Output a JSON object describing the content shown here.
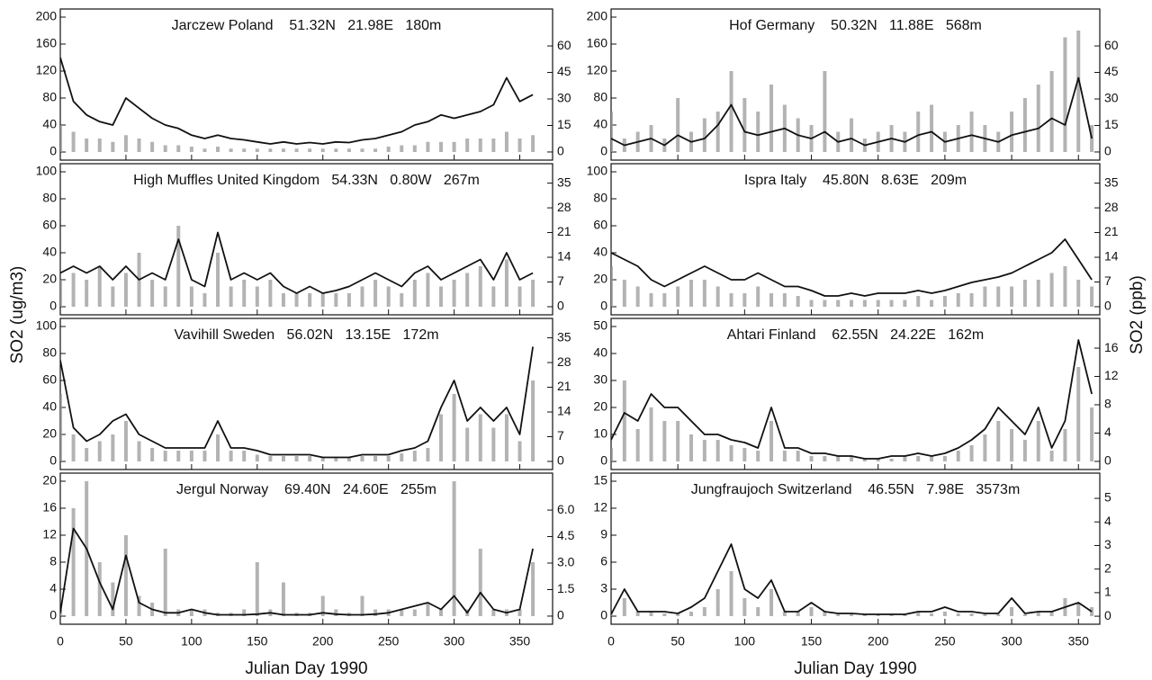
{
  "ylabel": "SO2 (ug/m3)",
  "y2label": "SO2 (ppb)",
  "chart_data": [
    {
      "type": "line",
      "title": "Jarczew Poland    51.32N   21.98E   180m",
      "x": [
        0,
        10,
        20,
        30,
        40,
        50,
        60,
        70,
        80,
        90,
        100,
        110,
        120,
        130,
        140,
        150,
        160,
        170,
        180,
        190,
        200,
        210,
        220,
        230,
        240,
        250,
        260,
        270,
        280,
        290,
        300,
        310,
        320,
        330,
        340,
        350,
        360
      ],
      "series": [
        {
          "color": "#999999",
          "values": [
            40,
            30,
            20,
            20,
            15,
            25,
            20,
            15,
            10,
            10,
            8,
            5,
            8,
            5,
            5,
            5,
            5,
            5,
            5,
            5,
            5,
            5,
            5,
            5,
            5,
            8,
            10,
            10,
            15,
            15,
            15,
            20,
            20,
            20,
            30,
            20,
            25
          ]
        },
        {
          "color": "#111111",
          "values": [
            140,
            75,
            55,
            45,
            40,
            80,
            65,
            50,
            40,
            35,
            25,
            20,
            25,
            20,
            18,
            15,
            12,
            15,
            12,
            14,
            12,
            15,
            14,
            18,
            20,
            25,
            30,
            40,
            45,
            55,
            50,
            55,
            60,
            70,
            110,
            75,
            85
          ]
        }
      ],
      "xlim": [
        0,
        375
      ],
      "xticks": [
        0,
        50,
        100,
        150,
        200,
        250,
        300,
        350
      ],
      "ylim": [
        -12,
        212
      ],
      "yticks": [
        0,
        40,
        80,
        120,
        160,
        200
      ],
      "y2lim": [
        -4.6,
        80.9
      ],
      "y2ticks": [
        0,
        15,
        30,
        45,
        60
      ]
    },
    {
      "type": "line",
      "title": "High Muffles United Kingdom   54.33N   0.80W   267m",
      "x": [
        0,
        10,
        20,
        30,
        40,
        50,
        60,
        70,
        80,
        90,
        100,
        110,
        120,
        130,
        140,
        150,
        160,
        170,
        180,
        190,
        200,
        210,
        220,
        230,
        240,
        250,
        260,
        270,
        280,
        290,
        300,
        310,
        320,
        330,
        340,
        350,
        360
      ],
      "series": [
        {
          "color": "#999999",
          "values": [
            20,
            25,
            20,
            30,
            15,
            25,
            40,
            20,
            15,
            60,
            15,
            10,
            40,
            15,
            20,
            15,
            20,
            10,
            10,
            10,
            10,
            10,
            10,
            15,
            20,
            15,
            10,
            20,
            25,
            15,
            20,
            25,
            30,
            15,
            35,
            15,
            20
          ]
        },
        {
          "color": "#111111",
          "values": [
            25,
            30,
            25,
            30,
            20,
            30,
            20,
            25,
            20,
            50,
            20,
            15,
            55,
            20,
            25,
            20,
            25,
            15,
            10,
            15,
            10,
            12,
            15,
            20,
            25,
            20,
            15,
            25,
            30,
            20,
            25,
            30,
            35,
            20,
            40,
            20,
            25
          ]
        }
      ],
      "xlim": [
        0,
        375
      ],
      "xticks": [
        0,
        50,
        100,
        150,
        200,
        250,
        300,
        350
      ],
      "ylim": [
        -6,
        106
      ],
      "yticks": [
        0,
        20,
        40,
        60,
        80,
        100
      ],
      "y2lim": [
        -2.3,
        40.5
      ],
      "y2ticks": [
        0,
        7,
        14,
        21,
        28,
        35
      ]
    },
    {
      "type": "line",
      "title": "Vavihill Sweden   56.02N   13.15E   172m",
      "x": [
        0,
        10,
        20,
        30,
        40,
        50,
        60,
        70,
        80,
        90,
        100,
        110,
        120,
        130,
        140,
        150,
        160,
        170,
        180,
        190,
        200,
        210,
        220,
        230,
        240,
        250,
        260,
        270,
        280,
        290,
        300,
        310,
        320,
        330,
        340,
        350,
        360
      ],
      "series": [
        {
          "color": "#999999",
          "values": [
            50,
            20,
            10,
            15,
            20,
            30,
            15,
            10,
            8,
            8,
            8,
            8,
            20,
            8,
            8,
            5,
            4,
            4,
            4,
            4,
            3,
            3,
            3,
            4,
            4,
            4,
            6,
            8,
            10,
            35,
            50,
            25,
            35,
            25,
            35,
            15,
            60
          ]
        },
        {
          "color": "#111111",
          "values": [
            75,
            25,
            15,
            20,
            30,
            35,
            20,
            15,
            10,
            10,
            10,
            10,
            30,
            10,
            10,
            8,
            5,
            5,
            5,
            5,
            3,
            3,
            3,
            5,
            5,
            5,
            8,
            10,
            15,
            40,
            60,
            30,
            40,
            30,
            40,
            20,
            85
          ]
        }
      ],
      "xlim": [
        0,
        375
      ],
      "xticks": [
        0,
        50,
        100,
        150,
        200,
        250,
        300,
        350
      ],
      "ylim": [
        -6,
        106
      ],
      "yticks": [
        0,
        20,
        40,
        60,
        80,
        100
      ],
      "y2lim": [
        -2.3,
        40.5
      ],
      "y2ticks": [
        0,
        7,
        14,
        21,
        28,
        35
      ]
    },
    {
      "type": "line",
      "title": "Jergul Norway    69.40N   24.60E   255m",
      "xlabel": "Julian Day 1990",
      "x": [
        0,
        10,
        20,
        30,
        40,
        50,
        60,
        70,
        80,
        90,
        100,
        110,
        120,
        130,
        140,
        150,
        160,
        170,
        180,
        190,
        200,
        210,
        220,
        230,
        240,
        250,
        260,
        270,
        280,
        290,
        300,
        310,
        320,
        330,
        340,
        350,
        360
      ],
      "series": [
        {
          "color": "#999999",
          "values": [
            1,
            16,
            20,
            8,
            5,
            12,
            3,
            2,
            10,
            1,
            1,
            1,
            0.5,
            0.5,
            1,
            8,
            1,
            5,
            0.5,
            0.5,
            3,
            1,
            0.5,
            3,
            1,
            1,
            1,
            1,
            2,
            1,
            20,
            1,
            10,
            1,
            1,
            1,
            8
          ]
        },
        {
          "color": "#111111",
          "values": [
            0.5,
            13,
            10,
            5,
            1,
            9,
            2,
            1,
            0.5,
            0.5,
            1,
            0.5,
            0.2,
            0.2,
            0.2,
            0.3,
            0.5,
            0.2,
            0.2,
            0.2,
            0.5,
            0.3,
            0.2,
            0.2,
            0.3,
            0.5,
            1,
            1.5,
            2,
            1,
            3,
            0.5,
            3.5,
            1,
            0.5,
            1,
            10
          ]
        }
      ],
      "xlim": [
        0,
        375
      ],
      "xticks": [
        0,
        50,
        100,
        150,
        200,
        250,
        300,
        350
      ],
      "ylim": [
        -1.2,
        21.2
      ],
      "yticks": [
        0,
        4,
        8,
        12,
        16,
        20
      ],
      "y2lim": [
        -0.46,
        8.09
      ],
      "y2ticks": [
        0,
        1.5,
        {
          "value": 3,
          "label": "3.0"
        },
        4.5,
        {
          "value": 6,
          "label": "6.0"
        }
      ]
    },
    {
      "type": "line",
      "title": "Hof Germany    50.32N   11.88E   568m",
      "x": [
        0,
        10,
        20,
        30,
        40,
        50,
        60,
        70,
        80,
        90,
        100,
        110,
        120,
        130,
        140,
        150,
        160,
        170,
        180,
        190,
        200,
        210,
        220,
        230,
        240,
        250,
        260,
        270,
        280,
        290,
        300,
        310,
        320,
        330,
        340,
        350,
        360
      ],
      "series": [
        {
          "color": "#999999",
          "values": [
            60,
            20,
            30,
            40,
            20,
            80,
            30,
            50,
            60,
            120,
            80,
            60,
            100,
            70,
            50,
            40,
            120,
            30,
            50,
            20,
            30,
            40,
            30,
            60,
            70,
            30,
            40,
            60,
            40,
            30,
            60,
            80,
            100,
            120,
            170,
            180,
            40
          ]
        },
        {
          "color": "#111111",
          "values": [
            20,
            10,
            15,
            20,
            10,
            25,
            15,
            20,
            40,
            70,
            30,
            25,
            30,
            35,
            25,
            20,
            30,
            15,
            20,
            10,
            15,
            20,
            15,
            25,
            30,
            15,
            20,
            25,
            20,
            15,
            25,
            30,
            35,
            50,
            40,
            110,
            20
          ]
        }
      ],
      "xlim": [
        0,
        366
      ],
      "xticks": [
        0,
        50,
        100,
        150,
        200,
        250,
        300,
        350
      ],
      "ylim": [
        -12,
        212
      ],
      "yticks": [
        0,
        40,
        80,
        120,
        160,
        200
      ],
      "y2lim": [
        -4.6,
        80.9
      ],
      "y2ticks": [
        0,
        15,
        30,
        45,
        60
      ]
    },
    {
      "type": "line",
      "title": "Ispra Italy    45.80N   8.63E   209m",
      "x": [
        0,
        10,
        20,
        30,
        40,
        50,
        60,
        70,
        80,
        90,
        100,
        110,
        120,
        130,
        140,
        150,
        160,
        170,
        180,
        190,
        200,
        210,
        220,
        230,
        240,
        250,
        260,
        270,
        280,
        290,
        300,
        310,
        320,
        330,
        340,
        350,
        360
      ],
      "series": [
        {
          "color": "#999999",
          "values": [
            30,
            20,
            15,
            10,
            10,
            15,
            20,
            20,
            15,
            10,
            10,
            15,
            10,
            10,
            8,
            5,
            5,
            5,
            5,
            5,
            5,
            5,
            5,
            8,
            5,
            8,
            10,
            10,
            15,
            15,
            15,
            20,
            20,
            25,
            30,
            20,
            15
          ]
        },
        {
          "color": "#111111",
          "values": [
            40,
            35,
            30,
            20,
            15,
            20,
            25,
            30,
            25,
            20,
            20,
            25,
            20,
            15,
            15,
            12,
            8,
            8,
            10,
            8,
            10,
            10,
            10,
            12,
            10,
            12,
            15,
            18,
            20,
            22,
            25,
            30,
            35,
            40,
            50,
            35,
            20
          ]
        }
      ],
      "xlim": [
        0,
        366
      ],
      "xticks": [
        0,
        50,
        100,
        150,
        200,
        250,
        300,
        350
      ],
      "ylim": [
        -6,
        106
      ],
      "yticks": [
        0,
        20,
        40,
        60,
        80,
        100
      ],
      "y2lim": [
        -2.3,
        40.5
      ],
      "y2ticks": [
        0,
        7,
        14,
        21,
        28,
        35
      ]
    },
    {
      "type": "line",
      "title": "Ahtari Finland    62.55N   24.22E   162m",
      "x": [
        0,
        10,
        20,
        30,
        40,
        50,
        60,
        70,
        80,
        90,
        100,
        110,
        120,
        130,
        140,
        150,
        160,
        170,
        180,
        190,
        200,
        210,
        220,
        230,
        240,
        250,
        260,
        270,
        280,
        290,
        300,
        310,
        320,
        330,
        340,
        350,
        360
      ],
      "series": [
        {
          "color": "#999999",
          "values": [
            5,
            30,
            12,
            20,
            15,
            15,
            10,
            8,
            8,
            6,
            5,
            4,
            15,
            4,
            4,
            2,
            2,
            2,
            2,
            1,
            1,
            1,
            2,
            2,
            2,
            2,
            4,
            6,
            10,
            15,
            12,
            8,
            15,
            4,
            12,
            35,
            20
          ]
        },
        {
          "color": "#111111",
          "values": [
            8,
            18,
            15,
            25,
            20,
            20,
            15,
            10,
            10,
            8,
            7,
            5,
            20,
            5,
            5,
            3,
            3,
            2,
            2,
            1,
            1,
            2,
            2,
            3,
            2,
            3,
            5,
            8,
            12,
            20,
            15,
            10,
            20,
            5,
            15,
            45,
            25
          ]
        }
      ],
      "xlim": [
        0,
        366
      ],
      "xticks": [
        0,
        50,
        100,
        150,
        200,
        250,
        300,
        350
      ],
      "ylim": [
        -3,
        53
      ],
      "yticks": [
        0,
        10,
        20,
        30,
        40,
        50
      ],
      "y2lim": [
        -1.15,
        20.2
      ],
      "y2ticks": [
        0,
        4,
        8,
        12,
        16
      ]
    },
    {
      "type": "line",
      "title": "Jungfraujoch Switzerland    46.55N   7.98E   3573m",
      "xlabel": "Julian Day 1990",
      "x": [
        0,
        10,
        20,
        30,
        40,
        50,
        60,
        70,
        80,
        90,
        100,
        110,
        120,
        130,
        140,
        150,
        160,
        170,
        180,
        190,
        200,
        210,
        220,
        230,
        240,
        250,
        260,
        270,
        280,
        290,
        300,
        310,
        320,
        330,
        340,
        350,
        360
      ],
      "series": [
        {
          "color": "#999999",
          "values": [
            0.2,
            2,
            0.5,
            0.5,
            0.3,
            0.3,
            0.5,
            1,
            3,
            5,
            2,
            1,
            3,
            0.5,
            0.5,
            1,
            0.5,
            0.2,
            0.2,
            0.2,
            0.2,
            0.2,
            0.2,
            0.5,
            0.3,
            0.5,
            0.3,
            0.3,
            0.2,
            0.2,
            1,
            0.2,
            0.5,
            0.5,
            2,
            1.5,
            1
          ]
        },
        {
          "color": "#111111",
          "values": [
            0.2,
            3,
            0.5,
            0.5,
            0.5,
            0.3,
            1,
            2,
            5,
            8,
            3,
            2,
            4,
            0.5,
            0.5,
            1.5,
            0.5,
            0.3,
            0.3,
            0.2,
            0.2,
            0.2,
            0.2,
            0.5,
            0.5,
            1,
            0.5,
            0.5,
            0.3,
            0.3,
            2,
            0.3,
            0.5,
            0.5,
            1,
            1.5,
            0.5
          ]
        }
      ],
      "xlim": [
        0,
        366
      ],
      "xticks": [
        0,
        50,
        100,
        150,
        200,
        250,
        300,
        350
      ],
      "ylim": [
        -0.9,
        15.9
      ],
      "yticks": [
        0,
        3,
        6,
        9,
        12,
        15
      ],
      "y2lim": [
        -0.34,
        6.07
      ],
      "y2ticks": [
        0,
        1,
        2,
        3,
        4,
        5
      ]
    }
  ]
}
